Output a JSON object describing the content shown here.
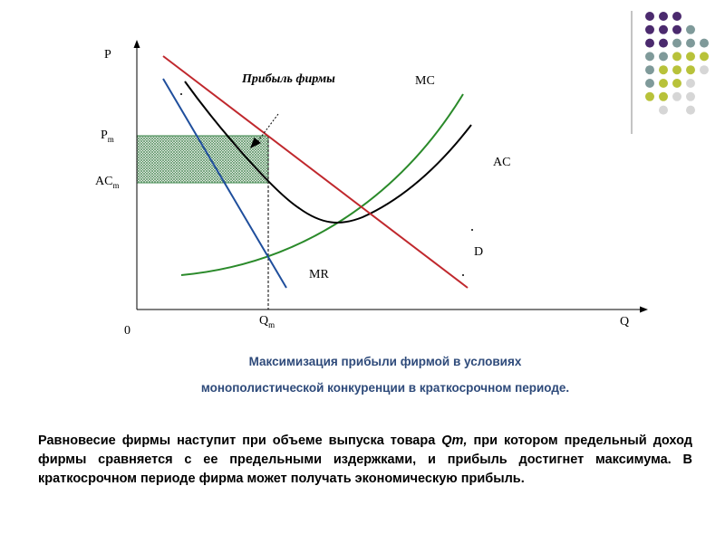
{
  "diagram": {
    "axes": {
      "y_label": "P",
      "x_label": "Q",
      "origin_label": "0"
    },
    "price_labels": {
      "pm_main": "P",
      "pm_sub": "m",
      "acm_main": "AC",
      "acm_sub": "m"
    },
    "qty_labels": {
      "qm_main": "Q",
      "qm_sub": "m"
    },
    "curve_labels": {
      "mc": "MC",
      "ac": "AC",
      "mr": "MR",
      "d": "D"
    },
    "profit_label": "Прибыль фирмы",
    "colors": {
      "demand": "#c0282d",
      "marginal_revenue": "#1f4e9c",
      "marginal_cost": "#2a8a2a",
      "average_cost": "#000000",
      "profit_fill": "#2f7a3a"
    }
  },
  "caption": {
    "line1": "Максимизация прибыли фирмой в условиях",
    "line2": "монополистической конкуренции в краткосрочном периоде."
  },
  "body": {
    "part1": "Равновесие фирмы наступит при объеме выпуска товара ",
    "qm": "Qm,",
    "part2": " при котором предельный доход фирмы сравняется с ее предельными издержками, и прибыль достигнет максимума. В краткосрочном периоде фирма может получать экономическую прибыль."
  },
  "decoration": {
    "dot_colors": [
      "#4b2a6e",
      "#7f9a9a",
      "#b8c23a",
      "#d6d6d6"
    ]
  }
}
